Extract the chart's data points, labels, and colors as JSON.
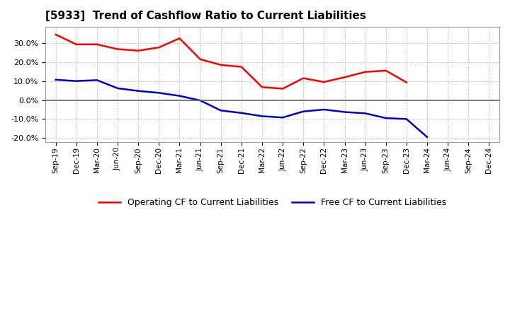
{
  "title": "[5933]  Trend of Cashflow Ratio to Current Liabilities",
  "x_labels": [
    "Sep-19",
    "Dec-19",
    "Mar-20",
    "Jun-20",
    "Sep-20",
    "Dec-20",
    "Mar-21",
    "Jun-21",
    "Sep-21",
    "Dec-21",
    "Mar-22",
    "Jun-22",
    "Sep-22",
    "Dec-22",
    "Mar-23",
    "Jun-23",
    "Sep-23",
    "Dec-23",
    "Mar-24",
    "Jun-24",
    "Sep-24",
    "Dec-24"
  ],
  "operating_cf": [
    0.345,
    0.293,
    0.293,
    0.268,
    0.26,
    0.277,
    0.325,
    0.215,
    0.185,
    0.175,
    0.068,
    0.06,
    0.115,
    0.095,
    0.12,
    0.148,
    0.155,
    0.093,
    null,
    null,
    null,
    null
  ],
  "free_cf": [
    0.107,
    0.1,
    0.105,
    0.062,
    0.048,
    0.038,
    0.022,
    -0.002,
    -0.055,
    -0.068,
    -0.085,
    -0.092,
    -0.06,
    -0.05,
    -0.063,
    -0.07,
    -0.095,
    -0.1,
    -0.195,
    null,
    null,
    null
  ],
  "operating_color": "#ff0000",
  "free_color": "#0000cc",
  "background_color": "#ffffff",
  "ylim": [
    -0.22,
    0.385
  ],
  "yticks": [
    -0.2,
    -0.1,
    0.0,
    0.1,
    0.2,
    0.3
  ],
  "legend_op": "Operating CF to Current Liabilities",
  "legend_free": "Free CF to Current Liabilities"
}
